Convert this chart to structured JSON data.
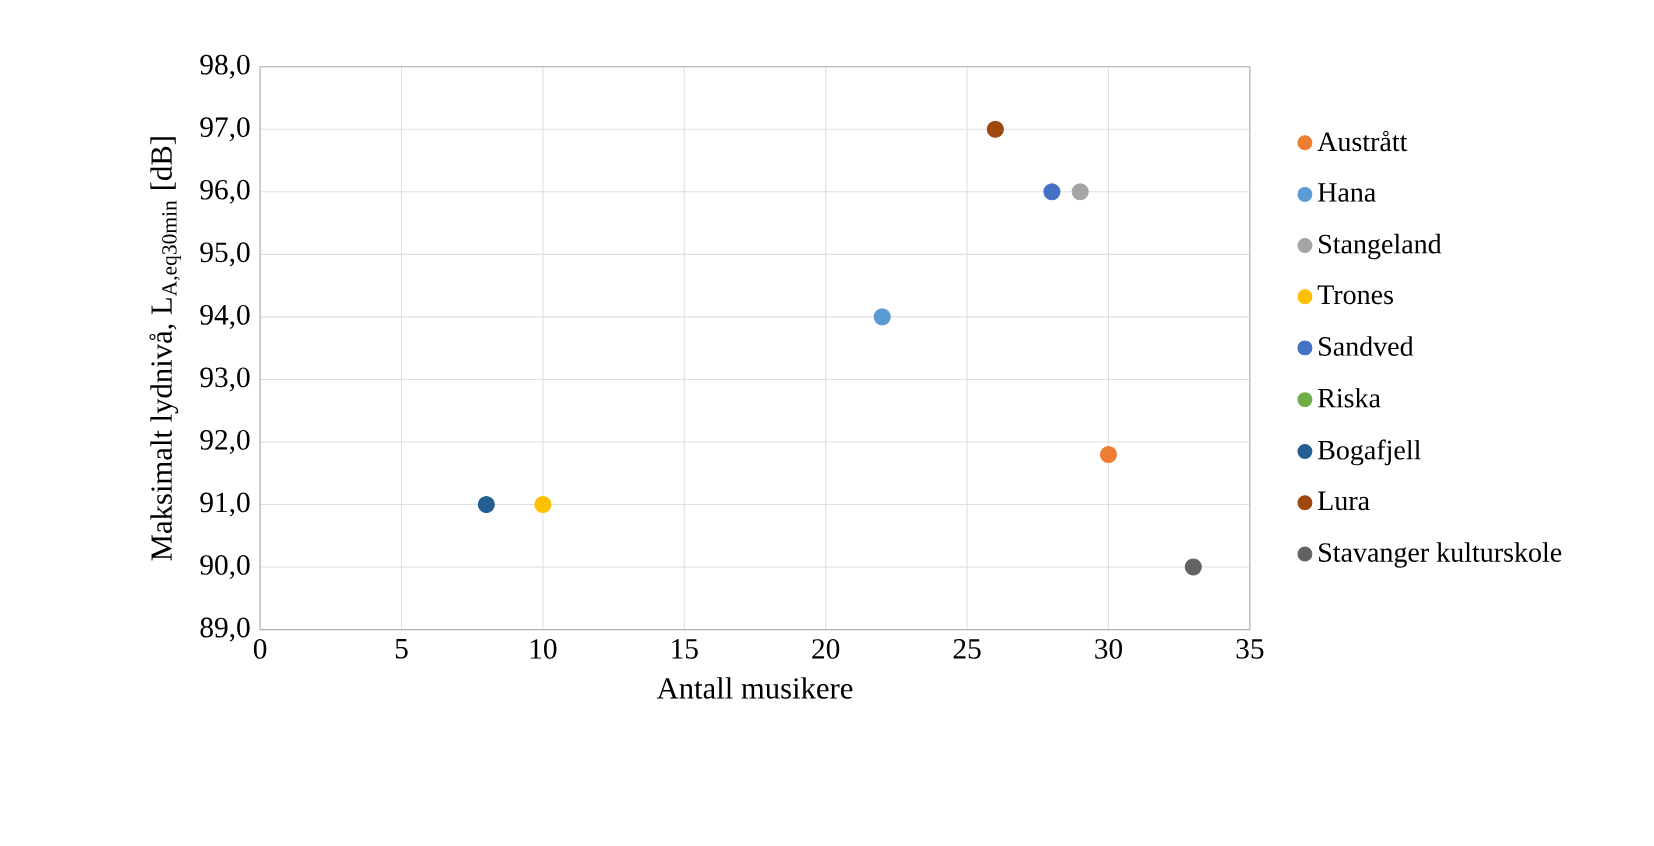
{
  "chart_data": {
    "type": "scatter",
    "xlabel": "Antall musikere",
    "ylabel": "Maksimalt lydnivå,  L$_{A,eq30min}$ [dB]",
    "xlim": [
      0,
      35
    ],
    "xticks": [
      0,
      5,
      10,
      15,
      20,
      25,
      30,
      35
    ],
    "ylim": [
      89,
      98
    ],
    "yticks": [
      {
        "value": 89,
        "label": "89,0"
      },
      {
        "value": 90,
        "label": "90,0"
      },
      {
        "value": 91,
        "label": "91,0"
      },
      {
        "value": 92,
        "label": "92,0"
      },
      {
        "value": 93,
        "label": "93,0"
      },
      {
        "value": 94,
        "label": "94,0"
      },
      {
        "value": 95,
        "label": "95,0"
      },
      {
        "value": 96,
        "label": "96,0"
      },
      {
        "value": 97,
        "label": "97,0"
      },
      {
        "value": 98,
        "label": "98,0"
      }
    ],
    "grid": true,
    "legend": "right",
    "marker": "circle",
    "series": [
      {
        "name": "Austrått",
        "color": "#ed7d31",
        "x": [
          30
        ],
        "values": [
          91.8
        ]
      },
      {
        "name": "Hana",
        "color": "#5b9bd5",
        "x": [
          22
        ],
        "values": [
          94.0
        ]
      },
      {
        "name": "Stangeland",
        "color": "#a5a5a5",
        "x": [
          29
        ],
        "values": [
          96.0
        ]
      },
      {
        "name": "Trones",
        "color": "#ffc000",
        "x": [
          10
        ],
        "values": [
          91.0
        ]
      },
      {
        "name": "Sandved",
        "color": "#4472c4",
        "x": [
          28
        ],
        "values": [
          96.0
        ]
      },
      {
        "name": "Riska",
        "color": "#70ad47",
        "x": [
          null
        ],
        "values": [
          null
        ]
      },
      {
        "name": "Bogafjell",
        "color": "#255e91",
        "x": [
          8
        ],
        "values": [
          91.0
        ]
      },
      {
        "name": "Lura",
        "color": "#9e480e",
        "x": [
          26
        ],
        "values": [
          97.0
        ]
      },
      {
        "name": "Stavanger kulturskole",
        "color": "#636363",
        "x": [
          33
        ],
        "values": [
          90.0
        ]
      }
    ]
  }
}
